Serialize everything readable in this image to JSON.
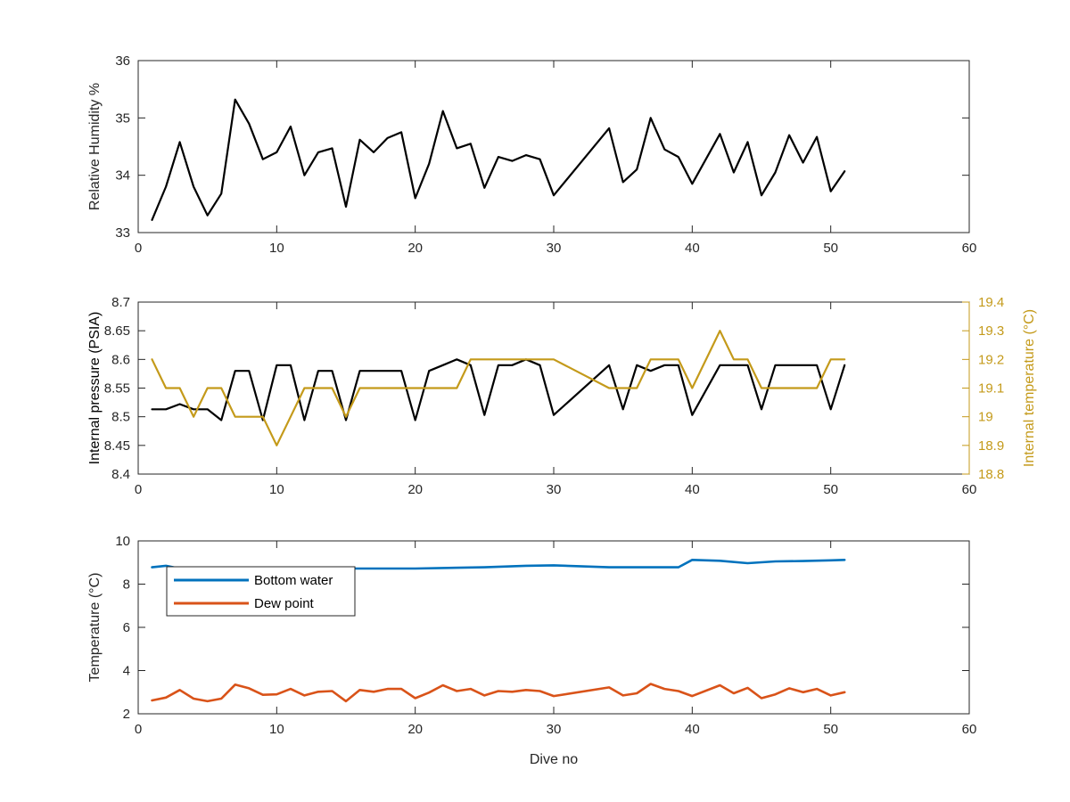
{
  "chart_data": [
    {
      "type": "line",
      "xlabel": "",
      "ylabel": "Relative Humidity %",
      "xlim": [
        0,
        60
      ],
      "ylim": [
        33,
        36
      ],
      "xticks": [
        "0",
        "10",
        "20",
        "30",
        "40",
        "50",
        "60"
      ],
      "yticks": [
        "33",
        "34",
        "35",
        "36"
      ],
      "grid": false,
      "series": [
        {
          "color": "#000000",
          "x": [
            1,
            2,
            3,
            4,
            5,
            6,
            7,
            8,
            9,
            10,
            11,
            12,
            13,
            14,
            15,
            16,
            17,
            18,
            19,
            20,
            21,
            22,
            23,
            24,
            25,
            26,
            27,
            28,
            29,
            30,
            34,
            35,
            36,
            37,
            38,
            39,
            40,
            42,
            43,
            44,
            45,
            46,
            47,
            48,
            49,
            50,
            51
          ],
          "values": [
            33.22,
            33.8,
            34.58,
            33.8,
            33.3,
            33.68,
            35.32,
            34.9,
            34.28,
            34.4,
            34.85,
            34.0,
            34.4,
            34.47,
            33.45,
            34.62,
            34.4,
            34.65,
            34.75,
            33.6,
            34.2,
            35.12,
            34.47,
            34.55,
            33.78,
            34.32,
            34.25,
            34.35,
            34.28,
            33.65,
            34.82,
            33.88,
            34.1,
            35.0,
            34.45,
            34.32,
            33.85,
            34.72,
            34.05,
            34.58,
            33.65,
            34.05,
            34.7,
            34.22,
            34.67,
            33.72,
            34.07
          ]
        }
      ]
    },
    {
      "type": "line",
      "xlabel": "",
      "ylabel": "Internal pressure (PSIA)",
      "ylabel_right": "Internal temperature (°C)",
      "xlim": [
        0,
        60
      ],
      "ylim": [
        8.4,
        8.7
      ],
      "ylim_right": [
        18.8,
        19.4
      ],
      "xticks": [
        "0",
        "10",
        "20",
        "30",
        "40",
        "50",
        "60"
      ],
      "yticks": [
        "8.4",
        "8.45",
        "8.5",
        "8.55",
        "8.6",
        "8.65",
        "8.7"
      ],
      "yticks_right": [
        "18.8",
        "18.9",
        "19",
        "19.1",
        "19.2",
        "19.3",
        "19.4"
      ],
      "grid": false,
      "series": [
        {
          "axis": "left",
          "color": "#000000",
          "x": [
            1,
            2,
            3,
            4,
            5,
            6,
            7,
            8,
            9,
            10,
            11,
            12,
            13,
            14,
            15,
            16,
            17,
            18,
            19,
            20,
            21,
            22,
            23,
            24,
            25,
            26,
            27,
            28,
            29,
            30,
            34,
            35,
            36,
            37,
            38,
            39,
            40,
            42,
            43,
            44,
            45,
            46,
            47,
            48,
            49,
            50,
            51
          ],
          "values": [
            8.513,
            8.513,
            8.522,
            8.513,
            8.513,
            8.494,
            8.58,
            8.58,
            8.494,
            8.59,
            8.59,
            8.494,
            8.58,
            8.58,
            8.494,
            8.58,
            8.58,
            8.58,
            8.58,
            8.494,
            8.58,
            8.59,
            8.6,
            8.59,
            8.503,
            8.59,
            8.59,
            8.6,
            8.59,
            8.503,
            8.59,
            8.513,
            8.59,
            8.58,
            8.59,
            8.59,
            8.503,
            8.59,
            8.59,
            8.59,
            8.513,
            8.59,
            8.59,
            8.59,
            8.59,
            8.513,
            8.59
          ]
        },
        {
          "axis": "right",
          "color": "#C49A1A",
          "x": [
            1,
            2,
            3,
            4,
            5,
            6,
            7,
            8,
            9,
            10,
            11,
            12,
            13,
            14,
            15,
            16,
            17,
            18,
            19,
            20,
            21,
            22,
            23,
            24,
            25,
            26,
            27,
            28,
            29,
            30,
            34,
            35,
            36,
            37,
            38,
            39,
            40,
            42,
            43,
            44,
            45,
            46,
            47,
            48,
            49,
            50,
            51
          ],
          "values": [
            19.2,
            19.1,
            19.1,
            19.0,
            19.1,
            19.1,
            19.0,
            19.0,
            19.0,
            18.9,
            19.0,
            19.1,
            19.1,
            19.1,
            19.0,
            19.1,
            19.1,
            19.1,
            19.1,
            19.1,
            19.1,
            19.1,
            19.1,
            19.2,
            19.2,
            19.2,
            19.2,
            19.2,
            19.2,
            19.2,
            19.1,
            19.1,
            19.1,
            19.2,
            19.2,
            19.2,
            19.1,
            19.3,
            19.2,
            19.2,
            19.1,
            19.1,
            19.1,
            19.1,
            19.1,
            19.2,
            19.2
          ]
        }
      ]
    },
    {
      "type": "line",
      "xlabel": "Dive no",
      "ylabel": "Temperature (°C)",
      "xlim": [
        0,
        60
      ],
      "ylim": [
        2,
        10
      ],
      "xticks": [
        "0",
        "10",
        "20",
        "30",
        "40",
        "50",
        "60"
      ],
      "yticks": [
        "2",
        "4",
        "6",
        "8",
        "10"
      ],
      "grid": false,
      "legend_position": "top-left",
      "series": [
        {
          "name": "Bottom water",
          "color": "#0072BD",
          "x": [
            1,
            2,
            3,
            5,
            10,
            15,
            20,
            25,
            28,
            30,
            34,
            36,
            39,
            40,
            42,
            44,
            46,
            48,
            50,
            51
          ],
          "values": [
            8.78,
            8.85,
            8.72,
            8.72,
            8.74,
            8.72,
            8.72,
            8.78,
            8.85,
            8.87,
            8.78,
            8.78,
            8.78,
            9.12,
            9.08,
            8.97,
            9.05,
            9.07,
            9.1,
            9.12
          ]
        },
        {
          "name": "Dew point",
          "color": "#D95319",
          "x": [
            1,
            2,
            3,
            4,
            5,
            6,
            7,
            8,
            9,
            10,
            11,
            12,
            13,
            14,
            15,
            16,
            17,
            18,
            19,
            20,
            21,
            22,
            23,
            24,
            25,
            26,
            27,
            28,
            29,
            30,
            34,
            35,
            36,
            37,
            38,
            39,
            40,
            42,
            43,
            44,
            45,
            46,
            47,
            48,
            49,
            50,
            51
          ],
          "values": [
            2.62,
            2.75,
            3.1,
            2.7,
            2.58,
            2.7,
            3.35,
            3.18,
            2.88,
            2.9,
            3.15,
            2.85,
            3.02,
            3.05,
            2.58,
            3.1,
            3.02,
            3.15,
            3.15,
            2.72,
            2.98,
            3.32,
            3.05,
            3.15,
            2.85,
            3.05,
            3.02,
            3.1,
            3.05,
            2.82,
            3.22,
            2.85,
            2.95,
            3.38,
            3.15,
            3.05,
            2.82,
            3.32,
            2.95,
            3.2,
            2.72,
            2.9,
            3.18,
            3.0,
            3.15,
            2.85,
            3.0
          ]
        }
      ]
    }
  ]
}
